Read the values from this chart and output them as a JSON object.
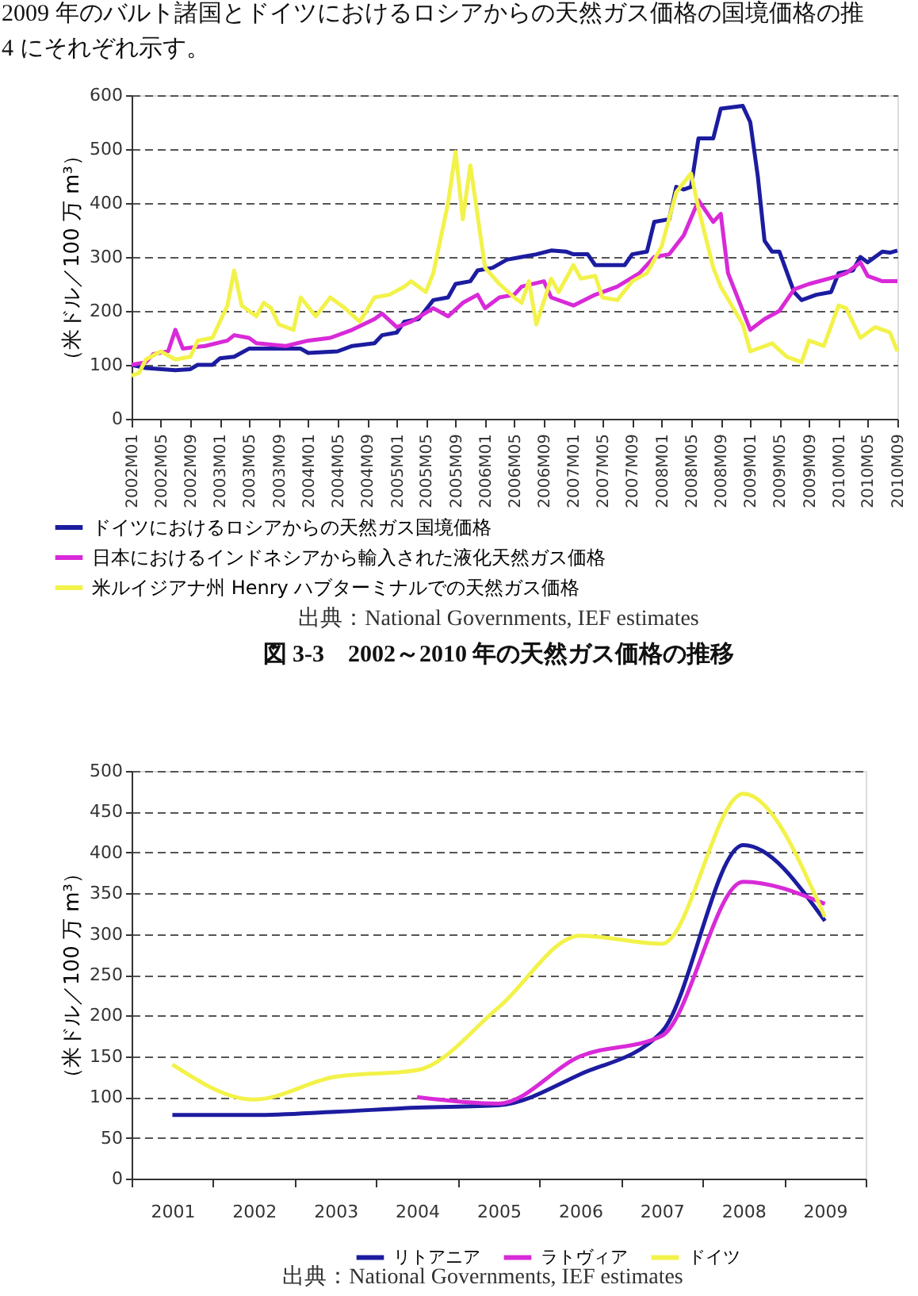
{
  "chart_data": [
    {
      "type": "line",
      "title": "図 3-3　2002～2010 年の天然ガス価格の推移",
      "ylabel": "（米ドル／100 万 m³）",
      "annotations": [
        "2009 年のバルト諸国とドイツにおけるロシアからの天然ガス価格の国境価格の推",
        "4 にそれぞれ示す。",
        "出典：National Governments, IEF estimates"
      ],
      "xlim": [
        "2002-01",
        "2010-09"
      ],
      "xticks": [
        {
          "value": "2002-01",
          "label": "2002M01"
        },
        {
          "value": "2002-05",
          "label": "2002M05"
        },
        {
          "value": "2002-09",
          "label": "2002M09"
        },
        {
          "value": "2003-01",
          "label": "2003M01"
        },
        {
          "value": "2003-05",
          "label": "2003M05"
        },
        {
          "value": "2003-09",
          "label": "2003M09"
        },
        {
          "value": "2004-01",
          "label": "2004M01"
        },
        {
          "value": "2004-05",
          "label": "2004M05"
        },
        {
          "value": "2004-09",
          "label": "2004M09"
        },
        {
          "value": "2005-01",
          "label": "2005M01"
        },
        {
          "value": "2005-05",
          "label": "2005M05"
        },
        {
          "value": "2005-09",
          "label": "2005M09"
        },
        {
          "value": "2006-01",
          "label": "2006M01"
        },
        {
          "value": "2006-05",
          "label": "2006M05"
        },
        {
          "value": "2006-09",
          "label": "2006M09"
        },
        {
          "value": "2007-01",
          "label": "2007M01"
        },
        {
          "value": "2007-05",
          "label": "2007M05"
        },
        {
          "value": "2007-09",
          "label": "2007M09"
        },
        {
          "value": "2008-01",
          "label": "2008M01"
        },
        {
          "value": "2008-05",
          "label": "2008M05"
        },
        {
          "value": "2008-09",
          "label": "2008M09"
        },
        {
          "value": "2009-01",
          "label": "2009M01"
        },
        {
          "value": "2009-05",
          "label": "2009M05"
        },
        {
          "value": "2009-09",
          "label": "2009M09"
        },
        {
          "value": "2010-01",
          "label": "2010M01"
        },
        {
          "value": "2010-05",
          "label": "2010M05"
        },
        {
          "value": "2010-09",
          "label": "2010M09"
        }
      ],
      "ylim": [
        0,
        600
      ],
      "yticks": [
        0,
        100,
        200,
        300,
        400,
        500,
        600
      ],
      "grid": "y",
      "legend": "bottom",
      "marker": "none",
      "line_style": "solid",
      "series": [
        {
          "name": "ドイツにおけるロシアからの天然ガス国境価格",
          "color": "#1c1ca0",
          "x": [
            "2002-01",
            "2002-03",
            "2002-07",
            "2002-09",
            "2002-10",
            "2002-12",
            "2003-01",
            "2003-03",
            "2003-05",
            "2003-12",
            "2004-01",
            "2004-05",
            "2004-07",
            "2004-10",
            "2004-11",
            "2005-01",
            "2005-02",
            "2005-04",
            "2005-06",
            "2005-08",
            "2005-09",
            "2005-11",
            "2005-12",
            "2006-02",
            "2006-04",
            "2006-06",
            "2006-08",
            "2006-10",
            "2006-12",
            "2007-01",
            "2007-03",
            "2007-04",
            "2007-08",
            "2007-09",
            "2007-11",
            "2007-12",
            "2008-02",
            "2008-03",
            "2008-04",
            "2008-05",
            "2008-06",
            "2008-08",
            "2008-09",
            "2008-12",
            "2009-01",
            "2009-02",
            "2009-03",
            "2009-04",
            "2009-05",
            "2009-07",
            "2009-08",
            "2009-10",
            "2009-12",
            "2010-01",
            "2010-03",
            "2010-04",
            "2010-05",
            "2010-07",
            "2010-08",
            "2010-09"
          ],
          "values": [
            100,
            94,
            90,
            92,
            100,
            100,
            112,
            115,
            130,
            130,
            122,
            125,
            135,
            140,
            155,
            160,
            180,
            185,
            220,
            225,
            250,
            255,
            275,
            280,
            295,
            300,
            305,
            312,
            310,
            305,
            305,
            285,
            285,
            305,
            310,
            365,
            370,
            430,
            425,
            430,
            520,
            520,
            575,
            580,
            550,
            450,
            330,
            310,
            310,
            235,
            220,
            230,
            235,
            270,
            275,
            300,
            290,
            310,
            308,
            312
          ]
        },
        {
          "name": "日本におけるインドネシアから輸入された液化天然ガス価格",
          "color": "#d82ad8",
          "x": [
            "2002-01",
            "2002-03",
            "2002-04",
            "2002-06",
            "2002-07",
            "2002-08",
            "2002-11",
            "2003-02",
            "2003-03",
            "2003-05",
            "2003-06",
            "2003-10",
            "2004-01",
            "2004-04",
            "2004-07",
            "2004-10",
            "2004-11",
            "2005-01",
            "2005-03",
            "2005-06",
            "2005-08",
            "2005-10",
            "2005-12",
            "2006-01",
            "2006-03",
            "2006-05",
            "2006-06",
            "2006-09",
            "2006-10",
            "2007-01",
            "2007-04",
            "2007-07",
            "2007-10",
            "2007-12",
            "2008-02",
            "2008-04",
            "2008-06",
            "2008-08",
            "2008-09",
            "2008-10",
            "2009-01",
            "2009-03",
            "2009-05",
            "2009-07",
            "2009-09",
            "2010-01",
            "2010-02",
            "2010-04",
            "2010-05",
            "2010-07",
            "2010-09"
          ],
          "values": [
            100,
            105,
            120,
            125,
            165,
            130,
            135,
            145,
            155,
            150,
            140,
            135,
            145,
            150,
            165,
            185,
            195,
            170,
            180,
            205,
            190,
            215,
            230,
            205,
            225,
            230,
            245,
            255,
            225,
            210,
            230,
            245,
            270,
            300,
            305,
            340,
            405,
            365,
            380,
            270,
            165,
            185,
            200,
            240,
            250,
            265,
            270,
            290,
            265,
            255,
            255
          ]
        },
        {
          "name": "米ルイジアナ州 Henry ハブターミナルでの天然ガス価格",
          "color": "#f2f24a",
          "x": [
            "2002-01",
            "2002-02",
            "2002-03",
            "2002-05",
            "2002-07",
            "2002-09",
            "2002-10",
            "2002-12",
            "2003-01",
            "2003-02",
            "2003-03",
            "2003-04",
            "2003-06",
            "2003-07",
            "2003-08",
            "2003-09",
            "2003-11",
            "2003-12",
            "2004-02",
            "2004-04",
            "2004-06",
            "2004-08",
            "2004-10",
            "2004-12",
            "2005-02",
            "2005-03",
            "2005-05",
            "2005-06",
            "2005-08",
            "2005-09",
            "2005-10",
            "2005-11",
            "2006-01",
            "2006-03",
            "2006-05",
            "2006-06",
            "2006-07",
            "2006-08",
            "2006-10",
            "2006-11",
            "2007-01",
            "2007-02",
            "2007-04",
            "2007-05",
            "2007-07",
            "2007-09",
            "2007-11",
            "2008-01",
            "2008-03",
            "2008-05",
            "2008-06",
            "2008-08",
            "2008-09",
            "2008-12",
            "2009-01",
            "2009-04",
            "2009-06",
            "2009-08",
            "2009-09",
            "2009-11",
            "2010-01",
            "2010-02",
            "2010-04",
            "2010-06",
            "2010-08",
            "2010-09"
          ],
          "values": [
            80,
            85,
            110,
            125,
            110,
            115,
            145,
            150,
            180,
            210,
            275,
            210,
            190,
            215,
            205,
            175,
            165,
            225,
            190,
            225,
            205,
            180,
            225,
            230,
            245,
            255,
            235,
            270,
            400,
            495,
            370,
            470,
            280,
            250,
            225,
            215,
            255,
            175,
            260,
            235,
            285,
            260,
            265,
            225,
            220,
            255,
            270,
            320,
            420,
            455,
            390,
            280,
            245,
            175,
            125,
            140,
            115,
            105,
            145,
            135,
            210,
            205,
            150,
            170,
            160,
            125
          ]
        }
      ]
    },
    {
      "type": "line",
      "ylabel": "（米ドル／100 万 m³）",
      "annotations": [
        "出典：National Governments, IEF estimates"
      ],
      "categories": [
        "2001",
        "2002",
        "2003",
        "2004",
        "2005",
        "2006",
        "2007",
        "2008",
        "2009"
      ],
      "ylim": [
        0,
        500
      ],
      "yticks": [
        0,
        50,
        100,
        150,
        200,
        250,
        300,
        350,
        400,
        450,
        500
      ],
      "grid": "y",
      "legend": "bottom",
      "marker": "none",
      "line_style": "solid",
      "series": [
        {
          "name": "リトアニア",
          "color": "#1c1ca0",
          "values": [
            78,
            78,
            82,
            87,
            90,
            128,
            180,
            409,
            316
          ]
        },
        {
          "name": "ラトヴィア",
          "color": "#d82ad8",
          "values": [
            null,
            null,
            null,
            100,
            92,
            150,
            175,
            364,
            337
          ]
        },
        {
          "name": "ドイツ",
          "color": "#f2f24a",
          "values": [
            140,
            97,
            125,
            133,
            210,
            298,
            288,
            472,
            321
          ]
        }
      ]
    }
  ]
}
